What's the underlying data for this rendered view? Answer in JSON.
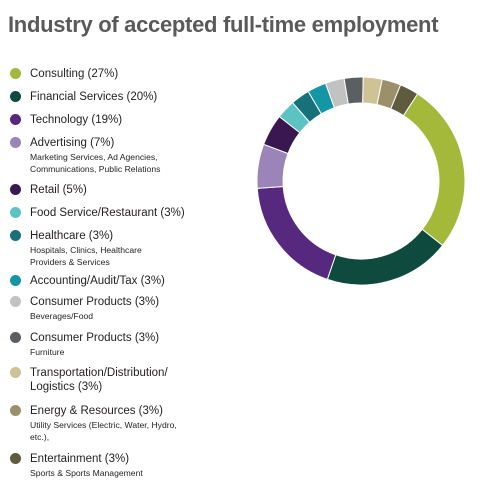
{
  "title": "Industry of accepted full-time employment",
  "chart_data": {
    "type": "pie",
    "variant": "donut",
    "title": "Industry of accepted full-time employment",
    "categories": [
      "Consulting",
      "Financial Services",
      "Technology",
      "Advertising",
      "Retail",
      "Food Service/Restaurant",
      "Healthcare",
      "Accounting/Audit/Tax",
      "Consumer Products",
      "Consumer Products",
      "Transportation/Distribution/Logistics",
      "Energy & Resources",
      "Entertainment"
    ],
    "values": [
      27,
      20,
      19,
      7,
      5,
      3,
      3,
      3,
      3,
      3,
      3,
      3,
      3
    ],
    "colors": [
      "#a4b83a",
      "#0e4a3d",
      "#56287e",
      "#9b84b8",
      "#3b1752",
      "#5cc2c2",
      "#18707a",
      "#1496a5",
      "#c2c2c2",
      "#5c5f61",
      "#cfc294",
      "#9c906a",
      "#5f5b3e"
    ],
    "legend_position": "left"
  },
  "legend": [
    {
      "label": "Consulting (27%)",
      "sub": ""
    },
    {
      "label": "Financial Services (20%)",
      "sub": ""
    },
    {
      "label": "Technology (19%)",
      "sub": ""
    },
    {
      "label": "Advertising (7%)",
      "sub": "Marketing Services, Ad Agencies, Communications, Public Relations"
    },
    {
      "label": "Retail (5%)",
      "sub": ""
    },
    {
      "label": "Food Service/Restaurant (3%)",
      "sub": ""
    },
    {
      "label": "Healthcare (3%)",
      "sub": "Hospitals, Clinics, Healthcare Providers & Services"
    },
    {
      "label": "Accounting/Audit/Tax (3%)",
      "sub": ""
    },
    {
      "label": "Consumer Products (3%)",
      "sub": "Beverages/Food"
    },
    {
      "label": "Consumer Products (3%)",
      "sub": "Furniture"
    },
    {
      "label": "Transportation/Distribution/ Logistics (3%)",
      "sub": ""
    },
    {
      "label": "Energy & Resources (3%)",
      "sub": "Utility Services (Electric, Water, Hydro, etc.),"
    },
    {
      "label": "Entertainment (3%)",
      "sub": "Sports & Sports Management"
    }
  ]
}
